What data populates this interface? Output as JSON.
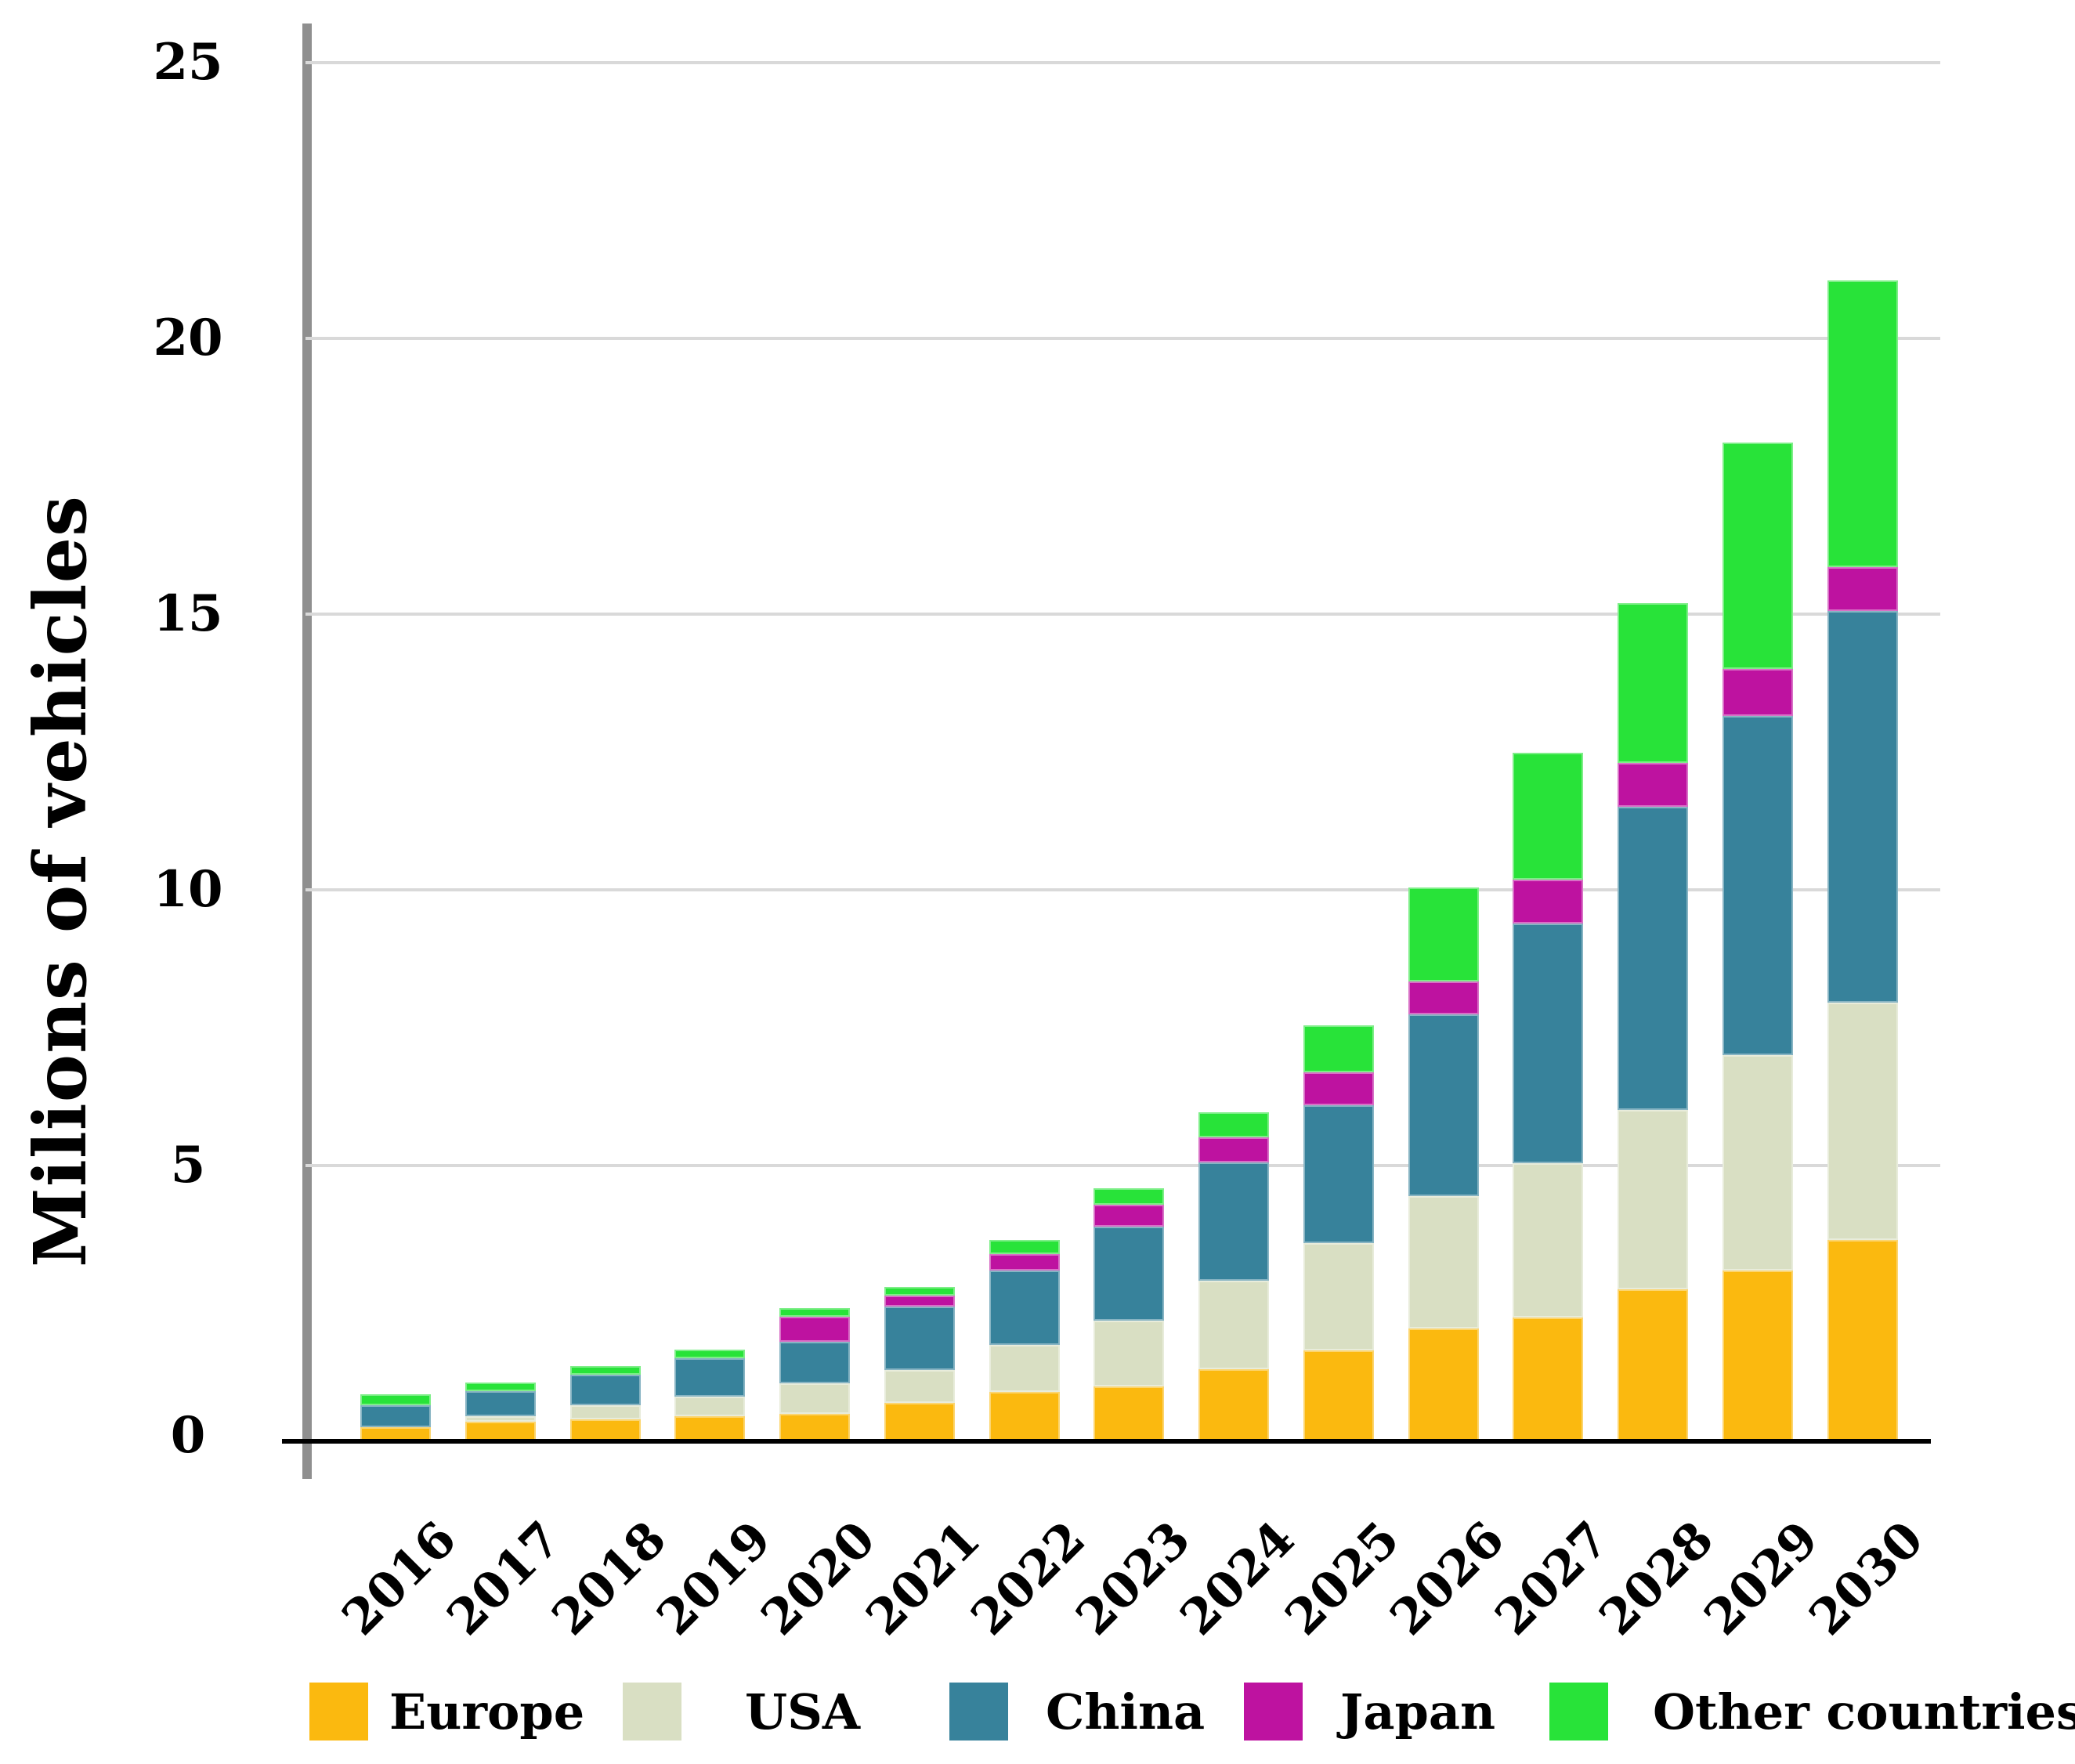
{
  "chart_data": {
    "type": "bar",
    "stacked": true,
    "title": "",
    "ylabel": "Milions of vehicles",
    "xlabel": "",
    "categories": [
      "2016",
      "2017",
      "2018",
      "2019",
      "2020",
      "2021",
      "2022",
      "2023",
      "2024",
      "2025",
      "2026",
      "2027",
      "2028",
      "2029",
      "2030"
    ],
    "series": [
      {
        "name": "Europe",
        "color": "#FBB90F",
        "values": [
          0.25,
          0.35,
          0.4,
          0.45,
          0.5,
          0.7,
          0.9,
          1.0,
          1.3,
          1.65,
          2.05,
          2.25,
          2.75,
          3.1,
          3.65
        ]
      },
      {
        "name": "USA",
        "color": "#D9DFC3",
        "values": [
          0.0,
          0.1,
          0.25,
          0.35,
          0.55,
          0.6,
          0.85,
          1.2,
          1.6,
          1.95,
          2.4,
          2.8,
          3.25,
          3.9,
          4.3
        ]
      },
      {
        "name": "China",
        "color": "#37829B",
        "values": [
          0.4,
          0.45,
          0.55,
          0.7,
          0.75,
          1.15,
          1.35,
          1.7,
          2.15,
          2.5,
          3.3,
          4.35,
          5.5,
          6.15,
          7.1
        ]
      },
      {
        "name": "Japan",
        "color": "#BE12A0",
        "values": [
          0.0,
          0.0,
          0.0,
          0.0,
          0.45,
          0.2,
          0.3,
          0.4,
          0.45,
          0.6,
          0.6,
          0.8,
          0.8,
          0.85,
          0.8
        ]
      },
      {
        "name": "Other countries",
        "color": "#28E339",
        "values": [
          0.2,
          0.15,
          0.15,
          0.15,
          0.15,
          0.15,
          0.25,
          0.3,
          0.45,
          0.85,
          1.7,
          2.3,
          2.9,
          4.1,
          5.2
        ]
      }
    ],
    "totals": [
      0.85,
      1.05,
      1.35,
      1.65,
      2.4,
      2.8,
      3.65,
      4.6,
      5.95,
      7.55,
      10.05,
      12.5,
      15.2,
      18.1,
      21.05
    ],
    "ylim": [
      0,
      25
    ],
    "yticks": [
      "0",
      "5",
      "10",
      "15",
      "20",
      "25"
    ],
    "grid": true,
    "legend_position": "bottom"
  },
  "colors": {
    "gridline": "#d9d9d9",
    "y_axis_line": "#8f8f8f",
    "baseline": "#000000",
    "text": "#000000",
    "background": "#ffffff"
  }
}
